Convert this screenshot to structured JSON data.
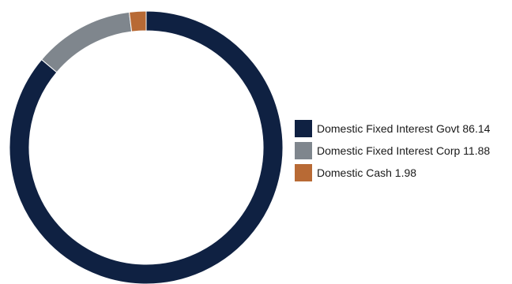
{
  "chart_data": {
    "type": "pie",
    "style": "donut",
    "slices": [
      {
        "label": "Domestic Fixed Interest Govt",
        "value": 86.14,
        "color": "#0f2142",
        "legend_text": "Domestic Fixed Interest Govt 86.14"
      },
      {
        "label": "Domestic Fixed Interest Corp",
        "value": 11.88,
        "color": "#7f868d",
        "legend_text": "Domestic Fixed Interest Corp 11.88"
      },
      {
        "label": "Domestic Cash",
        "value": 1.98,
        "color": "#b86a35",
        "legend_text": "Domestic Cash 1.98"
      }
    ],
    "start_angle_deg": 0,
    "direction": "clockwise",
    "legend_position": "right"
  }
}
